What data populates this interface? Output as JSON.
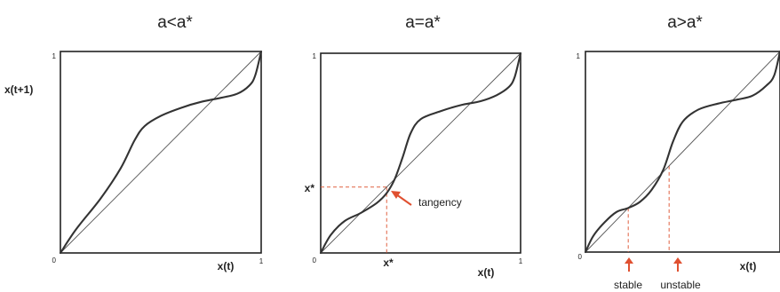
{
  "colors": {
    "frame": "#222222",
    "curve": "#333333",
    "diagonal": "#555555",
    "guide": "#e06040",
    "arrow": "#e05030"
  },
  "chart_data": [
    {
      "type": "line",
      "title": "a<a*",
      "xlabel": "x(t)",
      "ylabel": "x(t+1)",
      "xlim": [
        0,
        1
      ],
      "ylim": [
        0,
        1
      ],
      "x_ticks": [
        "0",
        "1"
      ],
      "y_ticks": [
        "1"
      ],
      "grid": false,
      "series": [
        {
          "values": [
            [
              0,
              0
            ],
            [
              0.08,
              0.12
            ],
            [
              0.2,
              0.27
            ],
            [
              0.3,
              0.42
            ],
            [
              0.37,
              0.56
            ],
            [
              0.42,
              0.63
            ],
            [
              0.5,
              0.68
            ],
            [
              0.6,
              0.72
            ],
            [
              0.7,
              0.75
            ],
            [
              0.8,
              0.77
            ],
            [
              0.88,
              0.79
            ],
            [
              0.94,
              0.83
            ],
            [
              0.97,
              0.88
            ],
            [
              1,
              1
            ]
          ]
        },
        {
          "values": [
            [
              0,
              0
            ],
            [
              1,
              1
            ]
          ]
        }
      ]
    },
    {
      "type": "line",
      "title": "a=a*",
      "xlabel": "x(t)",
      "ylabel": "",
      "xlim": [
        0,
        1
      ],
      "ylim": [
        0,
        1
      ],
      "x_ticks": [
        "0",
        "1"
      ],
      "y_ticks": [
        "1"
      ],
      "grid": false,
      "series": [
        {
          "values": [
            [
              0,
              0
            ],
            [
              0.05,
              0.09
            ],
            [
              0.12,
              0.16
            ],
            [
              0.2,
              0.2
            ],
            [
              0.28,
              0.25
            ],
            [
              0.33,
              0.3
            ],
            [
              0.37,
              0.37
            ],
            [
              0.41,
              0.48
            ],
            [
              0.45,
              0.6
            ],
            [
              0.5,
              0.67
            ],
            [
              0.6,
              0.71
            ],
            [
              0.7,
              0.74
            ],
            [
              0.8,
              0.76
            ],
            [
              0.88,
              0.79
            ],
            [
              0.94,
              0.83
            ],
            [
              0.97,
              0.88
            ],
            [
              1,
              1
            ]
          ]
        },
        {
          "values": [
            [
              0,
              0
            ],
            [
              1,
              1
            ]
          ]
        }
      ],
      "annotations": [
        {
          "text": "tangency",
          "x": 0.33,
          "y": 0.33
        },
        {
          "text": "x*",
          "x": 0.33,
          "y": 0,
          "axis": "x"
        },
        {
          "text": "x*",
          "x": 0,
          "y": 0.33,
          "axis": "y"
        }
      ]
    },
    {
      "type": "line",
      "title": "a>a*",
      "xlabel": "x(t)",
      "ylabel": "",
      "xlim": [
        0,
        1
      ],
      "ylim": [
        0,
        1
      ],
      "x_ticks": [
        "0"
      ],
      "y_ticks": [
        "1"
      ],
      "grid": false,
      "series": [
        {
          "values": [
            [
              0,
              0
            ],
            [
              0.04,
              0.08
            ],
            [
              0.1,
              0.15
            ],
            [
              0.16,
              0.2
            ],
            [
              0.22,
              0.22
            ],
            [
              0.28,
              0.25
            ],
            [
              0.34,
              0.31
            ],
            [
              0.4,
              0.41
            ],
            [
              0.45,
              0.55
            ],
            [
              0.5,
              0.65
            ],
            [
              0.58,
              0.71
            ],
            [
              0.68,
              0.74
            ],
            [
              0.78,
              0.76
            ],
            [
              0.86,
              0.78
            ],
            [
              0.93,
              0.83
            ],
            [
              0.97,
              0.88
            ],
            [
              1,
              1
            ]
          ]
        },
        {
          "values": [
            [
              0,
              0
            ],
            [
              1,
              1
            ]
          ]
        }
      ],
      "annotations": [
        {
          "text": "stable",
          "x": 0.22,
          "y": 0.22
        },
        {
          "text": "unstable",
          "x": 0.43,
          "y": 0.43
        }
      ]
    }
  ]
}
